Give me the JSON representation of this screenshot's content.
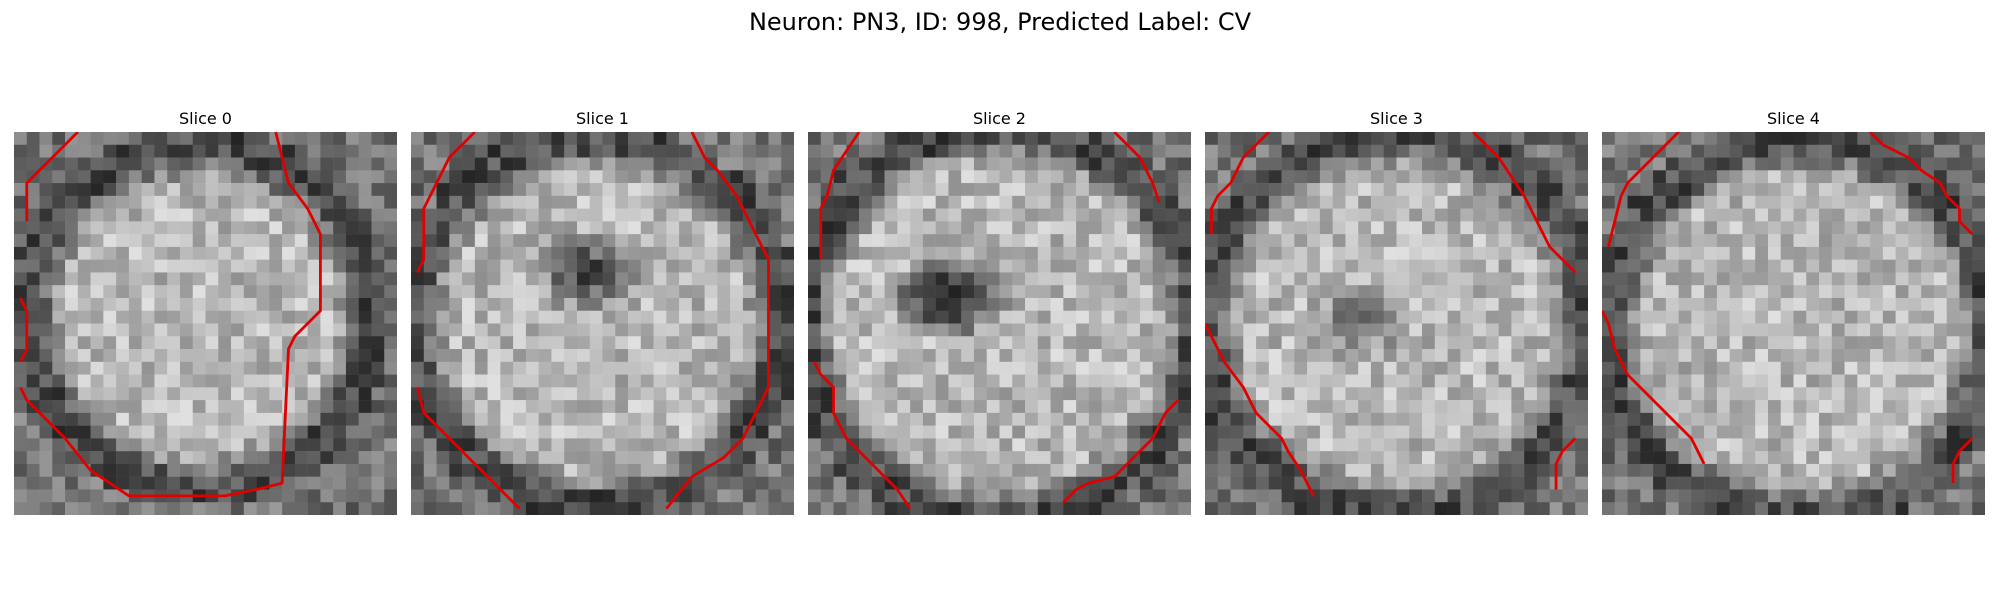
{
  "figure": {
    "title": "Neuron: PN3, ID: 998, Predicted Label: CV"
  },
  "contour_color": "#e00000",
  "slices": [
    {
      "label": "Slice 0"
    },
    {
      "label": "Slice 1"
    },
    {
      "label": "Slice 2"
    },
    {
      "label": "Slice 3"
    },
    {
      "label": "Slice 4"
    }
  ]
}
